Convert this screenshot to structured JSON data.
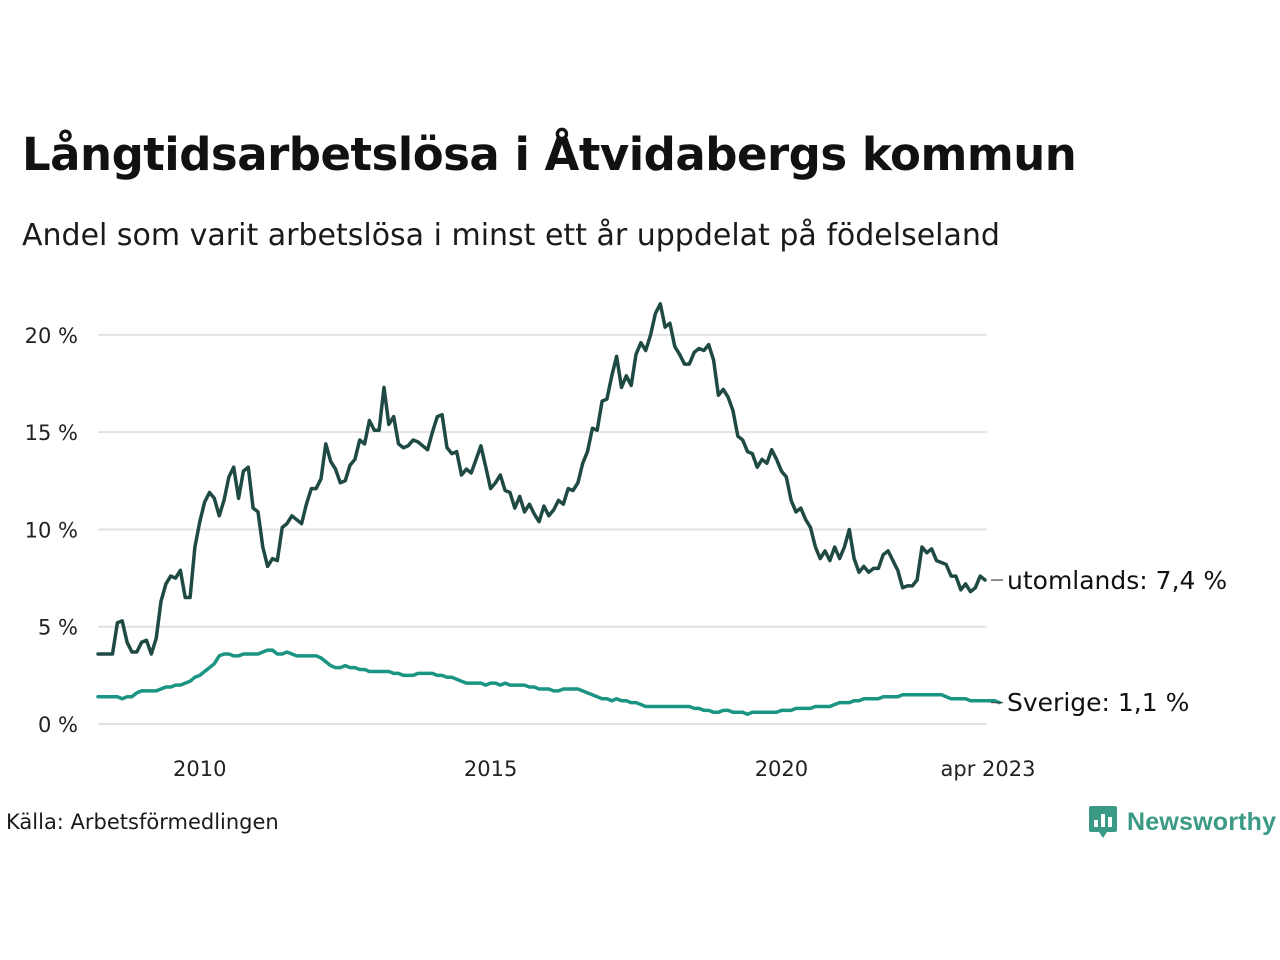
{
  "title": "Långtidsarbetslösa i Åtvidabergs kommun",
  "subtitle": "Andel som varit arbetslösa i minst ett år uppdelat på födelseland",
  "source": "Källa: Arbetsförmedlingen",
  "brand": "Newsworthy",
  "colors": {
    "utomlands": "#1f4a44",
    "sverige": "#1a9483",
    "grid": "#e3e3e3",
    "brand": "#3b9a86"
  },
  "chart_data": {
    "type": "line",
    "x_start": "2008-04",
    "x_end": "2023-04",
    "x_unit": "month",
    "ylim": [
      0,
      22
    ],
    "y_ticks": [
      0,
      5,
      10,
      15,
      20
    ],
    "y_tick_labels": [
      "0 %",
      "5 %",
      "10 %",
      "15 %",
      "20 %"
    ],
    "x_ticks": [
      2010,
      2015,
      2020
    ],
    "x_tick_labels": [
      "2010",
      "2015",
      "2020"
    ],
    "x_end_label": "apr 2023",
    "series": [
      {
        "name": "utomlands",
        "end_label": "utomlands: 7,4 %",
        "values": [
          3.6,
          3.6,
          3.6,
          3.6,
          5.2,
          5.3,
          4.2,
          3.7,
          3.7,
          4.2,
          4.3,
          3.6,
          4.4,
          6.3,
          7.2,
          7.6,
          7.5,
          7.9,
          6.5,
          6.5,
          9.1,
          10.4,
          11.4,
          11.9,
          11.6,
          10.7,
          11.5,
          12.7,
          13.2,
          11.6,
          13.0,
          13.2,
          11.1,
          10.9,
          9.1,
          8.1,
          8.5,
          8.4,
          10.1,
          10.3,
          10.7,
          10.5,
          10.3,
          11.3,
          12.1,
          12.1,
          12.6,
          14.4,
          13.5,
          13.1,
          12.4,
          12.5,
          13.3,
          13.6,
          14.6,
          14.4,
          15.6,
          15.1,
          15.1,
          17.3,
          15.4,
          15.8,
          14.4,
          14.2,
          14.3,
          14.6,
          14.5,
          14.3,
          14.1,
          15.0,
          15.8,
          15.9,
          14.2,
          13.9,
          14.0,
          12.8,
          13.1,
          12.9,
          13.6,
          14.3,
          13.2,
          12.1,
          12.4,
          12.8,
          12.0,
          11.9,
          11.1,
          11.7,
          10.9,
          11.3,
          10.8,
          10.4,
          11.2,
          10.7,
          11.0,
          11.5,
          11.3,
          12.1,
          12.0,
          12.4,
          13.4,
          14.0,
          15.2,
          15.1,
          16.6,
          16.7,
          17.9,
          18.9,
          17.3,
          17.9,
          17.4,
          19.0,
          19.6,
          19.2,
          20.0,
          21.1,
          21.6,
          20.4,
          20.6,
          19.4,
          19.0,
          18.5,
          18.5,
          19.1,
          19.3,
          19.2,
          19.5,
          18.7,
          16.9,
          17.2,
          16.8,
          16.1,
          14.8,
          14.6,
          14.0,
          13.9,
          13.2,
          13.6,
          13.4,
          14.1,
          13.6,
          13.0,
          12.7,
          11.5,
          10.9,
          11.1,
          10.5,
          10.1,
          9.1,
          8.5,
          8.9,
          8.4,
          9.1,
          8.5,
          9.1,
          10.0,
          8.5,
          7.8,
          8.1,
          7.8,
          8.0,
          8.0,
          8.7,
          8.9,
          8.4,
          7.9,
          7.0,
          7.1,
          7.1,
          7.4,
          9.1,
          8.8,
          9.0,
          8.4,
          8.3,
          8.2,
          7.6,
          7.6,
          6.9,
          7.2,
          6.8,
          7.0,
          7.6,
          7.4
        ]
      },
      {
        "name": "Sverige",
        "end_label": "Sverige: 1,1 %",
        "values": [
          1.4,
          1.4,
          1.4,
          1.4,
          1.4,
          1.3,
          1.4,
          1.4,
          1.6,
          1.7,
          1.7,
          1.7,
          1.7,
          1.8,
          1.9,
          1.9,
          2.0,
          2.0,
          2.1,
          2.2,
          2.4,
          2.5,
          2.7,
          2.9,
          3.1,
          3.5,
          3.6,
          3.6,
          3.5,
          3.5,
          3.6,
          3.6,
          3.6,
          3.6,
          3.7,
          3.8,
          3.8,
          3.6,
          3.6,
          3.7,
          3.6,
          3.5,
          3.5,
          3.5,
          3.5,
          3.5,
          3.4,
          3.2,
          3.0,
          2.9,
          2.9,
          3.0,
          2.9,
          2.9,
          2.8,
          2.8,
          2.7,
          2.7,
          2.7,
          2.7,
          2.7,
          2.6,
          2.6,
          2.5,
          2.5,
          2.5,
          2.6,
          2.6,
          2.6,
          2.6,
          2.5,
          2.5,
          2.4,
          2.4,
          2.3,
          2.2,
          2.1,
          2.1,
          2.1,
          2.1,
          2.0,
          2.1,
          2.1,
          2.0,
          2.1,
          2.0,
          2.0,
          2.0,
          2.0,
          1.9,
          1.9,
          1.8,
          1.8,
          1.8,
          1.7,
          1.7,
          1.8,
          1.8,
          1.8,
          1.8,
          1.7,
          1.6,
          1.5,
          1.4,
          1.3,
          1.3,
          1.2,
          1.3,
          1.2,
          1.2,
          1.1,
          1.1,
          1.0,
          0.9,
          0.9,
          0.9,
          0.9,
          0.9,
          0.9,
          0.9,
          0.9,
          0.9,
          0.9,
          0.8,
          0.8,
          0.7,
          0.7,
          0.6,
          0.6,
          0.7,
          0.7,
          0.6,
          0.6,
          0.6,
          0.5,
          0.6,
          0.6,
          0.6,
          0.6,
          0.6,
          0.6,
          0.7,
          0.7,
          0.7,
          0.8,
          0.8,
          0.8,
          0.8,
          0.9,
          0.9,
          0.9,
          0.9,
          1.0,
          1.1,
          1.1,
          1.1,
          1.2,
          1.2,
          1.3,
          1.3,
          1.3,
          1.3,
          1.4,
          1.4,
          1.4,
          1.4,
          1.5,
          1.5,
          1.5,
          1.5,
          1.5,
          1.5,
          1.5,
          1.5,
          1.5,
          1.4,
          1.3,
          1.3,
          1.3,
          1.3,
          1.2,
          1.2,
          1.2,
          1.2,
          1.2,
          1.2,
          1.1
        ]
      }
    ]
  }
}
